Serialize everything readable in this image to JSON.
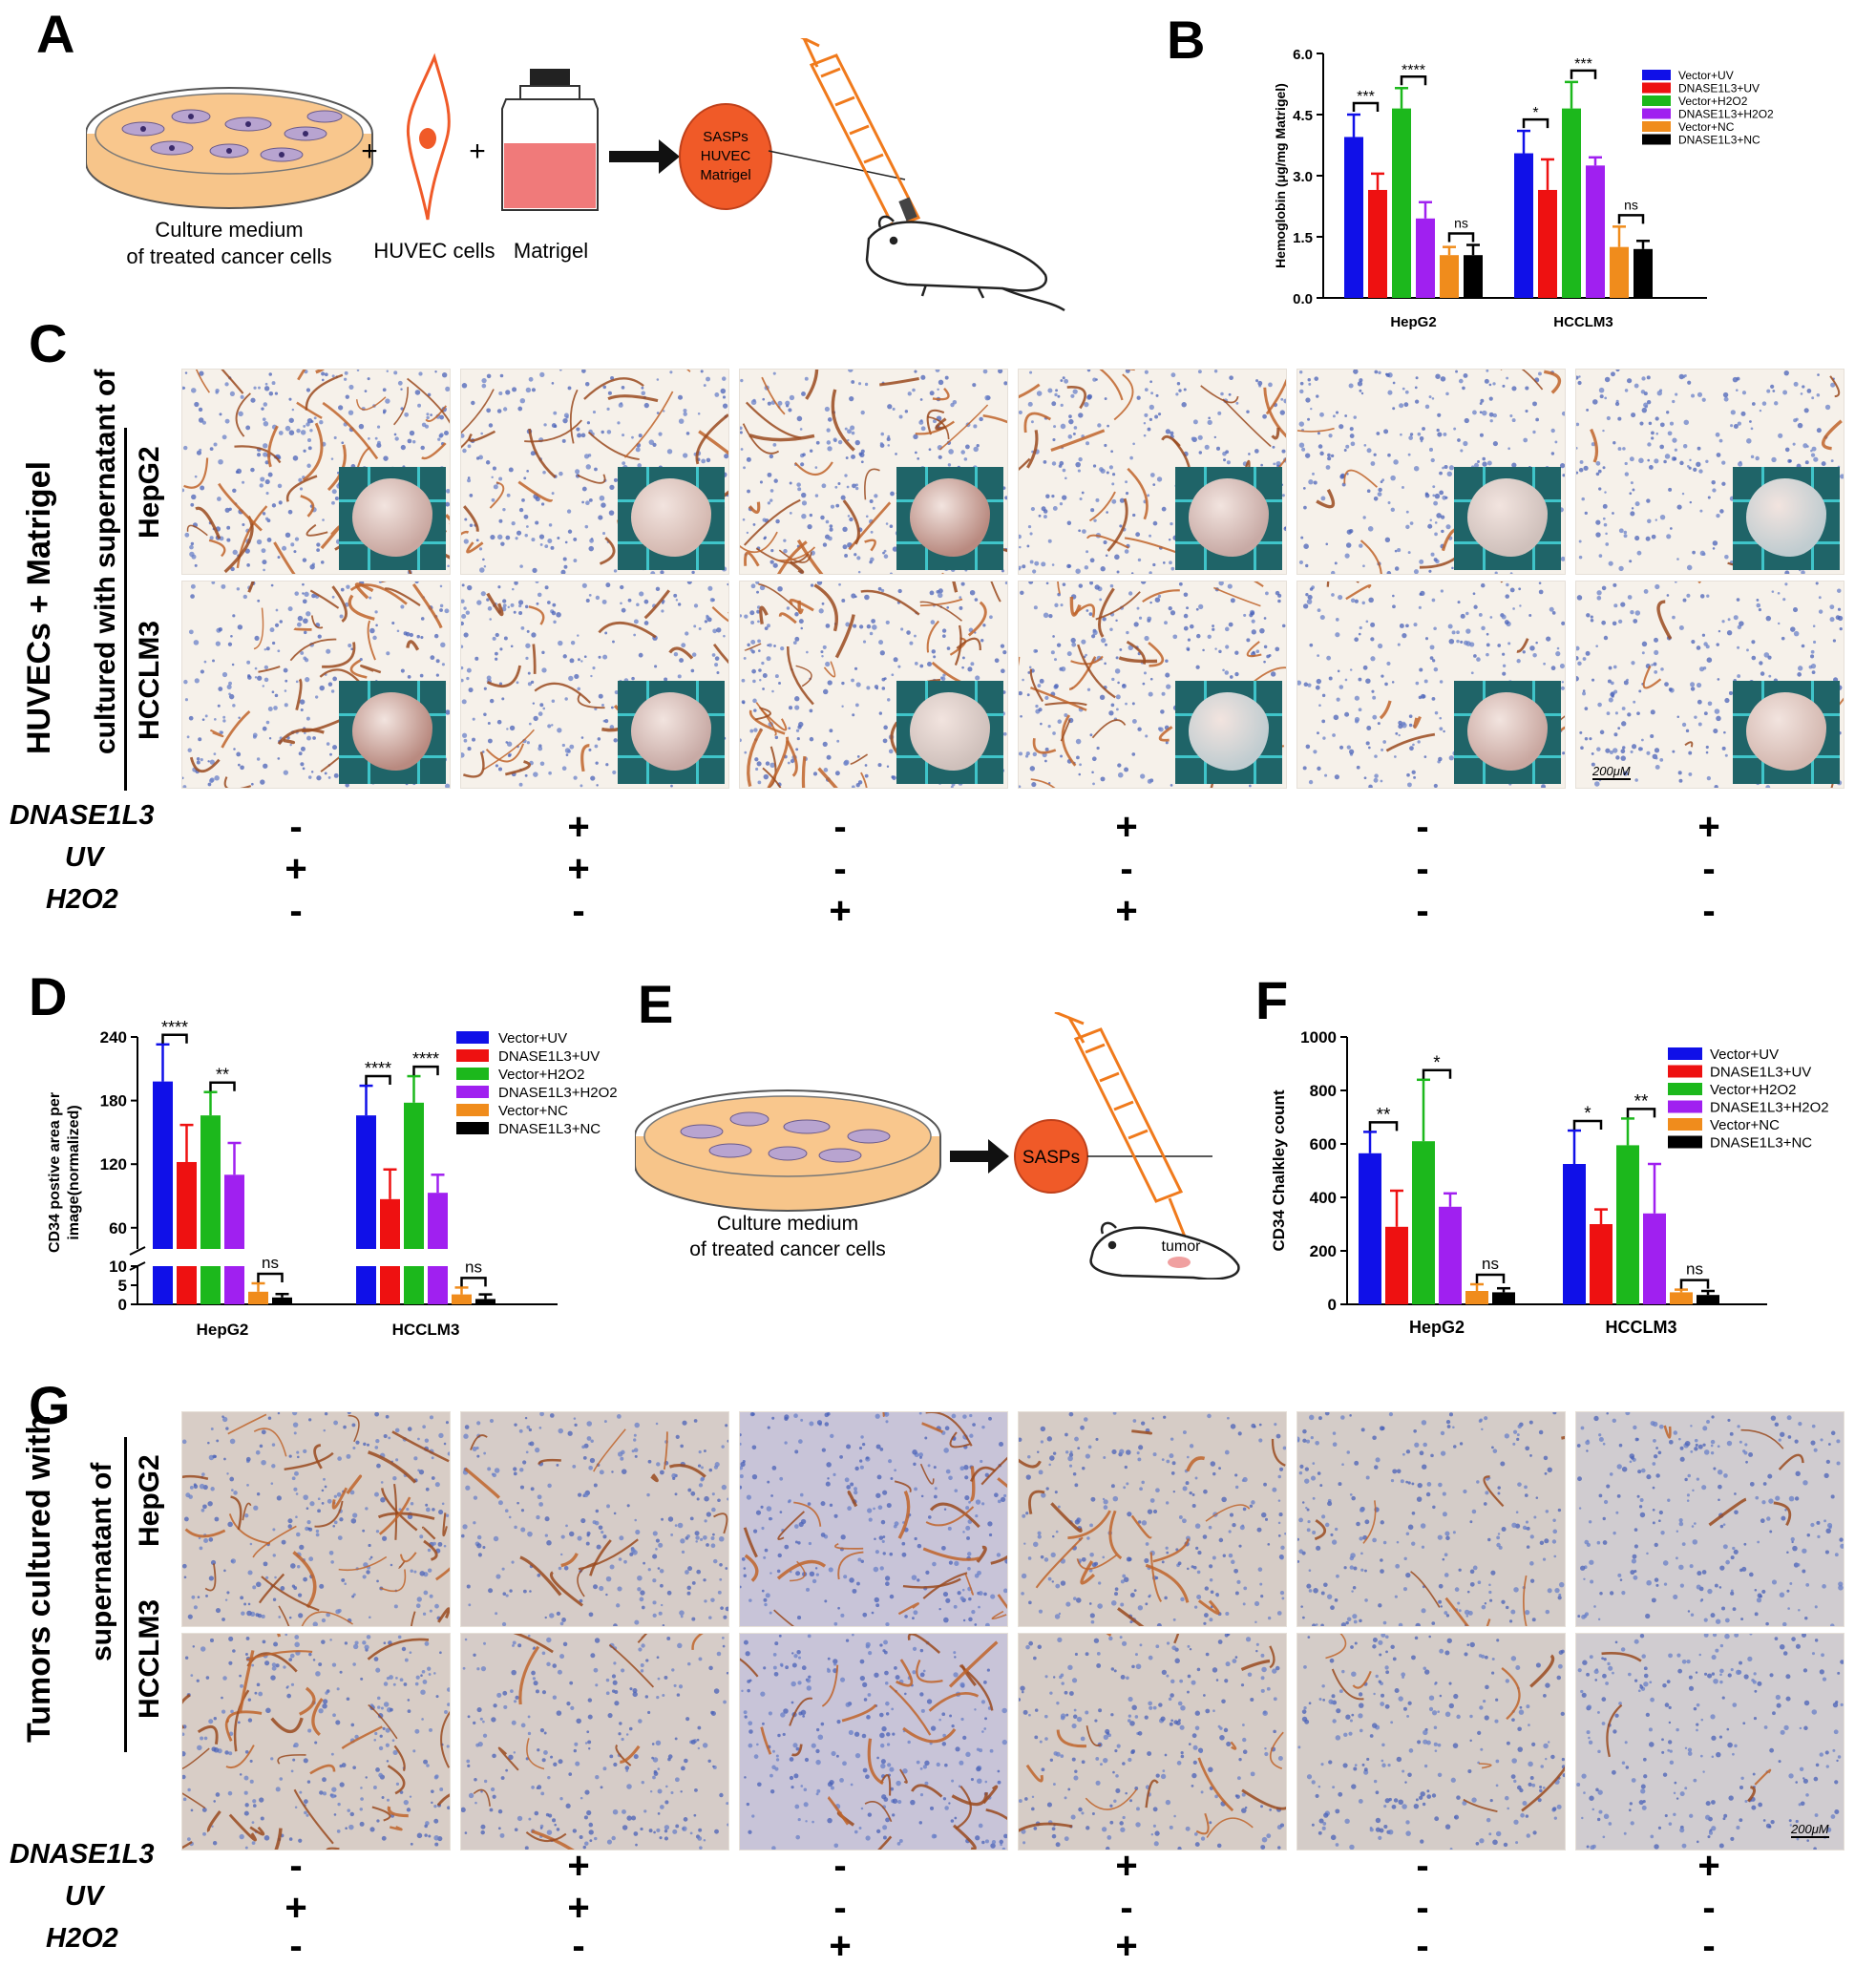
{
  "panels": {
    "A": "A",
    "B": "B",
    "C": "C",
    "D": "D",
    "E": "E",
    "F": "F",
    "G": "G"
  },
  "schematic_a": {
    "dish_label_line1": "Culture medium",
    "dish_label_line2": "of treated cancer cells",
    "plus1": "+",
    "plus2": "+",
    "huvec_label": "HUVEC cells",
    "matrigel_label": "Matrigel",
    "circle_line1": "SASPs",
    "circle_line2": "HUVEC",
    "circle_line3": "Matrigel"
  },
  "schematic_e": {
    "dish_label_line1": "Culture medium",
    "dish_label_line2": "of treated cancer cells",
    "circle_label": "SASPs",
    "mouse_label": "tumor"
  },
  "panel_c": {
    "side_title_line1": "HUVECs + Matrigel",
    "side_title_line2": "cultured with supernatant of",
    "row1": "HepG2",
    "row2": "HCCLM3",
    "scale_bar": "200μM"
  },
  "panel_g": {
    "side_title_line1": "Tumors cultured with",
    "side_title_line2": "supernatant of",
    "row1": "HepG2",
    "row2": "HCCLM3",
    "scale_bar": "200μM"
  },
  "conditions": {
    "labels": [
      "DNASE1L3",
      "UV",
      "H2O2"
    ],
    "signs": [
      [
        "-",
        "+",
        "-",
        "+",
        "-",
        "+"
      ],
      [
        "+",
        "+",
        "-",
        "-",
        "-",
        "-"
      ],
      [
        "-",
        "-",
        "+",
        "+",
        "-",
        "-"
      ]
    ]
  },
  "colors": {
    "Vector+UV": "#1010e8",
    "DNASE1L3+UV": "#ee1111",
    "Vector+H2O2": "#1cb81c",
    "DNASE1L3+H2O2": "#a020f0",
    "Vector+NC": "#f08c1c",
    "DNASE1L3+NC": "#000000",
    "schematic_orange": "#f05a28",
    "ihc_brown": "#a0522d",
    "ihc_blue": "#3850a8",
    "inset_bg": "#1f6468"
  },
  "chart_data": [
    {
      "id": "B",
      "type": "bar",
      "ylabel": "Hemoglobin (μg/mg Matrigel)",
      "ylim": [
        0,
        6.0
      ],
      "yticks": [
        "0.0",
        "1.5",
        "3.0",
        "4.5",
        "6.0"
      ],
      "categories": [
        "HepG2",
        "HCCLM3"
      ],
      "legend_position": "top-right",
      "series": [
        {
          "name": "Vector+UV",
          "values": [
            3.95,
            3.55
          ],
          "errors": [
            0.55,
            0.55
          ]
        },
        {
          "name": "DNASE1L3+UV",
          "values": [
            2.65,
            2.65
          ],
          "errors": [
            0.4,
            0.75
          ]
        },
        {
          "name": "Vector+H2O2",
          "values": [
            4.65,
            4.65
          ],
          "errors": [
            0.5,
            0.65
          ]
        },
        {
          "name": "DNASE1L3+H2O2",
          "values": [
            1.95,
            3.25
          ],
          "errors": [
            0.4,
            0.2
          ]
        },
        {
          "name": "Vector+NC",
          "values": [
            1.05,
            1.25
          ],
          "errors": [
            0.2,
            0.5
          ]
        },
        {
          "name": "DNASE1L3+NC",
          "values": [
            1.05,
            1.2
          ],
          "errors": [
            0.25,
            0.2
          ]
        }
      ],
      "significance": [
        {
          "group": 0,
          "from": 0,
          "to": 1,
          "label": "***"
        },
        {
          "group": 0,
          "from": 2,
          "to": 3,
          "label": "****"
        },
        {
          "group": 0,
          "from": 4,
          "to": 5,
          "label": "ns"
        },
        {
          "group": 1,
          "from": 0,
          "to": 1,
          "label": "*"
        },
        {
          "group": 1,
          "from": 2,
          "to": 3,
          "label": "***"
        },
        {
          "group": 1,
          "from": 4,
          "to": 5,
          "label": "ns"
        }
      ]
    },
    {
      "id": "D",
      "type": "bar",
      "ylabel_line1": "CD34 postive area per",
      "ylabel_line2": "image(normalized)",
      "broken_axis": true,
      "upper_ylim": [
        40,
        240
      ],
      "upper_yticks": [
        "60",
        "120",
        "180",
        "240"
      ],
      "lower_ylim": [
        0,
        10
      ],
      "lower_yticks": [
        "0",
        "5",
        "10"
      ],
      "categories": [
        "HepG2",
        "HCCLM3"
      ],
      "legend_position": "top-right",
      "series": [
        {
          "name": "Vector+UV",
          "values": [
            198,
            166
          ],
          "errors": [
            35,
            28
          ]
        },
        {
          "name": "DNASE1L3+UV",
          "values": [
            122,
            87
          ],
          "errors": [
            35,
            28
          ]
        },
        {
          "name": "Vector+H2O2",
          "values": [
            166,
            178
          ],
          "errors": [
            22,
            25
          ]
        },
        {
          "name": "DNASE1L3+H2O2",
          "values": [
            110,
            93
          ],
          "errors": [
            30,
            17
          ]
        },
        {
          "name": "Vector+NC",
          "values": [
            3.3,
            2.6
          ],
          "errors": [
            2.2,
            1.8
          ]
        },
        {
          "name": "DNASE1L3+NC",
          "values": [
            1.8,
            1.4
          ],
          "errors": [
            0.9,
            1.2
          ]
        }
      ],
      "significance": [
        {
          "group": 0,
          "from": 0,
          "to": 1,
          "label": "****"
        },
        {
          "group": 0,
          "from": 2,
          "to": 3,
          "label": "**"
        },
        {
          "group": 0,
          "from": 4,
          "to": 5,
          "label": "ns"
        },
        {
          "group": 1,
          "from": 0,
          "to": 1,
          "label": "****"
        },
        {
          "group": 1,
          "from": 2,
          "to": 3,
          "label": "****"
        },
        {
          "group": 1,
          "from": 4,
          "to": 5,
          "label": "ns"
        }
      ]
    },
    {
      "id": "F",
      "type": "bar",
      "ylabel": "CD34 Chalkley count",
      "ylim": [
        0,
        1000
      ],
      "yticks": [
        "0",
        "200",
        "400",
        "600",
        "800",
        "1000"
      ],
      "categories": [
        "HepG2",
        "HCCLM3"
      ],
      "legend_position": "top-right",
      "series": [
        {
          "name": "Vector+UV",
          "values": [
            565,
            525
          ],
          "errors": [
            80,
            125
          ]
        },
        {
          "name": "DNASE1L3+UV",
          "values": [
            290,
            300
          ],
          "errors": [
            135,
            55
          ]
        },
        {
          "name": "Vector+H2O2",
          "values": [
            610,
            595
          ],
          "errors": [
            230,
            100
          ]
        },
        {
          "name": "DNASE1L3+H2O2",
          "values": [
            365,
            340
          ],
          "errors": [
            50,
            185
          ]
        },
        {
          "name": "Vector+NC",
          "values": [
            50,
            45
          ],
          "errors": [
            25,
            10
          ]
        },
        {
          "name": "DNASE1L3+NC",
          "values": [
            45,
            35
          ],
          "errors": [
            15,
            15
          ]
        }
      ],
      "significance": [
        {
          "group": 0,
          "from": 0,
          "to": 1,
          "label": "**"
        },
        {
          "group": 0,
          "from": 2,
          "to": 3,
          "label": "*"
        },
        {
          "group": 0,
          "from": 4,
          "to": 5,
          "label": "ns"
        },
        {
          "group": 1,
          "from": 0,
          "to": 1,
          "label": "*"
        },
        {
          "group": 1,
          "from": 2,
          "to": 3,
          "label": "**"
        },
        {
          "group": 1,
          "from": 4,
          "to": 5,
          "label": "ns"
        }
      ]
    }
  ]
}
